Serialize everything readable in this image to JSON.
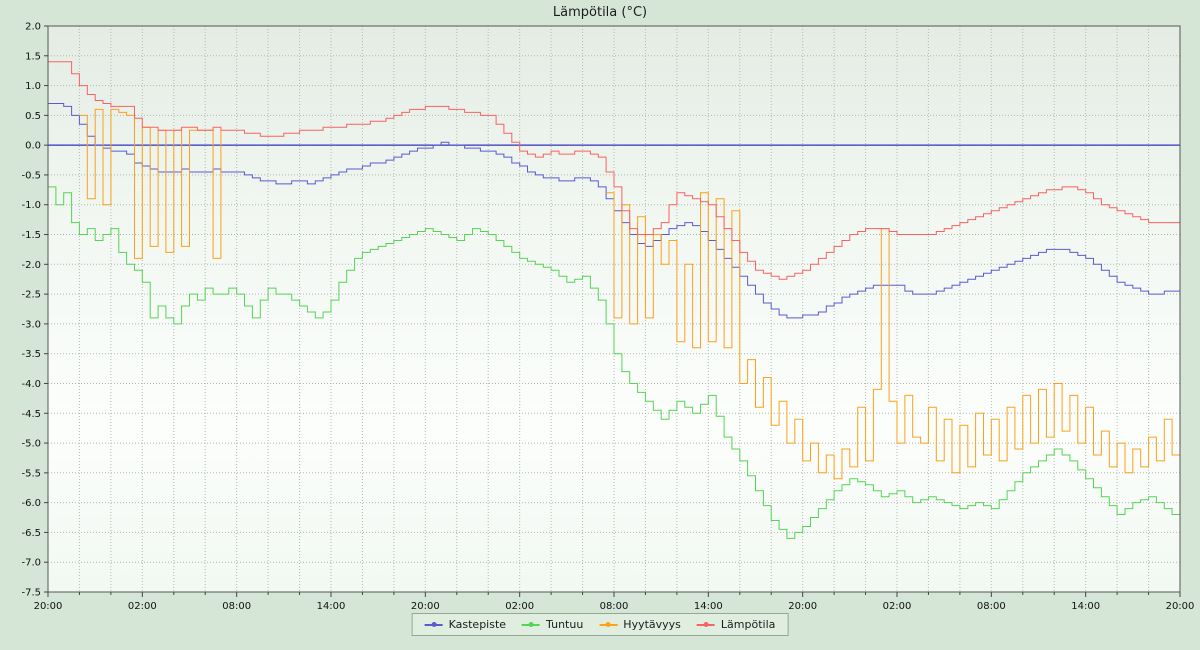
{
  "chart_data": {
    "type": "line",
    "title": "Lämpötila (°C)",
    "grid": "dotted",
    "legend_position": "bottom",
    "plot_background": {
      "top": "#e4ece4",
      "bottom": "#f2f8f2"
    },
    "zero_line": {
      "value": 0.0,
      "color": "#3434bd"
    },
    "x_axis": {
      "total_hours": 72,
      "step_hours": 0.5,
      "minor_step_hours": 2,
      "tick_hours": [
        0,
        6,
        12,
        18,
        24,
        30,
        36,
        42,
        48,
        54,
        60,
        66,
        72
      ],
      "tick_labels": [
        "20:00",
        "02:00",
        "08:00",
        "14:00",
        "20:00",
        "02:00",
        "08:00",
        "14:00",
        "20:00",
        "02:00",
        "08:00",
        "14:00",
        "20:00"
      ]
    },
    "y_axis": {
      "min": -7.5,
      "max": 2.0,
      "tick_step": 0.5,
      "tick_labels": [
        "2.0",
        "1.5",
        "1.0",
        "0.5",
        "0.0",
        "-0.5",
        "-1.0",
        "-1.5",
        "-2.0",
        "-2.5",
        "-3.0",
        "-3.5",
        "-4.0",
        "-4.5",
        "-5.0",
        "-5.5",
        "-6.0",
        "-6.5",
        "-7.0",
        "-7.5"
      ]
    },
    "series": [
      {
        "name": "Kastepiste",
        "color": "#5b5bd0",
        "values": [
          0.7,
          0.7,
          0.65,
          0.5,
          0.35,
          0.15,
          0.0,
          -0.05,
          -0.1,
          -0.1,
          -0.15,
          -0.3,
          -0.35,
          -0.4,
          -0.45,
          -0.45,
          -0.45,
          -0.4,
          -0.45,
          -0.45,
          -0.45,
          -0.4,
          -0.45,
          -0.45,
          -0.45,
          -0.5,
          -0.55,
          -0.6,
          -0.6,
          -0.65,
          -0.65,
          -0.6,
          -0.6,
          -0.65,
          -0.6,
          -0.55,
          -0.5,
          -0.45,
          -0.4,
          -0.4,
          -0.35,
          -0.3,
          -0.3,
          -0.25,
          -0.2,
          -0.15,
          -0.1,
          -0.05,
          -0.05,
          0.0,
          0.05,
          0.0,
          0.0,
          -0.05,
          -0.05,
          -0.1,
          -0.1,
          -0.15,
          -0.2,
          -0.3,
          -0.35,
          -0.45,
          -0.5,
          -0.55,
          -0.55,
          -0.6,
          -0.6,
          -0.55,
          -0.55,
          -0.6,
          -0.7,
          -0.9,
          -1.1,
          -1.3,
          -1.5,
          -1.65,
          -1.7,
          -1.6,
          -1.5,
          -1.4,
          -1.35,
          -1.3,
          -1.35,
          -1.45,
          -1.6,
          -1.75,
          -1.9,
          -2.05,
          -2.2,
          -2.35,
          -2.5,
          -2.65,
          -2.75,
          -2.85,
          -2.9,
          -2.9,
          -2.85,
          -2.85,
          -2.8,
          -2.7,
          -2.65,
          -2.55,
          -2.5,
          -2.45,
          -2.4,
          -2.35,
          -2.35,
          -2.35,
          -2.35,
          -2.45,
          -2.5,
          -2.5,
          -2.5,
          -2.45,
          -2.4,
          -2.35,
          -2.3,
          -2.25,
          -2.2,
          -2.15,
          -2.1,
          -2.05,
          -2.0,
          -1.95,
          -1.9,
          -1.85,
          -1.8,
          -1.75,
          -1.75,
          -1.75,
          -1.8,
          -1.85,
          -1.9,
          -2.0,
          -2.1,
          -2.2,
          -2.3,
          -2.35,
          -2.4,
          -2.45,
          -2.5,
          -2.5,
          -2.45,
          -2.45,
          -2.45
        ]
      },
      {
        "name": "Tuntuu",
        "color": "#55d455",
        "values": [
          -0.7,
          -1.0,
          -0.8,
          -1.3,
          -1.5,
          -1.4,
          -1.6,
          -1.5,
          -1.4,
          -1.8,
          -2.0,
          -2.1,
          -2.3,
          -2.9,
          -2.7,
          -2.9,
          -3.0,
          -2.7,
          -2.5,
          -2.6,
          -2.4,
          -2.5,
          -2.5,
          -2.4,
          -2.5,
          -2.7,
          -2.9,
          -2.6,
          -2.4,
          -2.5,
          -2.5,
          -2.6,
          -2.7,
          -2.8,
          -2.9,
          -2.8,
          -2.6,
          -2.3,
          -2.1,
          -1.9,
          -1.8,
          -1.75,
          -1.7,
          -1.65,
          -1.6,
          -1.55,
          -1.5,
          -1.45,
          -1.4,
          -1.45,
          -1.5,
          -1.55,
          -1.6,
          -1.5,
          -1.4,
          -1.45,
          -1.5,
          -1.6,
          -1.7,
          -1.8,
          -1.9,
          -1.95,
          -2.0,
          -2.05,
          -2.1,
          -2.2,
          -2.3,
          -2.25,
          -2.2,
          -2.4,
          -2.6,
          -3.0,
          -3.5,
          -3.8,
          -4.0,
          -4.15,
          -4.3,
          -4.45,
          -4.6,
          -4.45,
          -4.3,
          -4.4,
          -4.5,
          -4.35,
          -4.2,
          -4.55,
          -4.9,
          -5.1,
          -5.3,
          -5.55,
          -5.8,
          -6.05,
          -6.3,
          -6.45,
          -6.6,
          -6.5,
          -6.4,
          -6.25,
          -6.1,
          -5.95,
          -5.8,
          -5.7,
          -5.6,
          -5.65,
          -5.7,
          -5.8,
          -5.9,
          -5.85,
          -5.8,
          -5.9,
          -6.0,
          -5.95,
          -5.9,
          -5.95,
          -6.0,
          -6.05,
          -6.1,
          -6.05,
          -6.0,
          -6.05,
          -6.1,
          -5.95,
          -5.8,
          -5.65,
          -5.5,
          -5.4,
          -5.3,
          -5.2,
          -5.1,
          -5.2,
          -5.3,
          -5.45,
          -5.6,
          -5.75,
          -5.9,
          -6.05,
          -6.2,
          -6.1,
          -6.0,
          -5.95,
          -5.9,
          -6.0,
          -6.1,
          -6.2,
          -6.3
        ]
      },
      {
        "name": "Hyytävyys",
        "color": "#ffa018",
        "values": [
          null,
          null,
          null,
          null,
          0.5,
          -0.9,
          0.6,
          -1.0,
          0.6,
          0.55,
          0.5,
          -1.9,
          0.3,
          -1.7,
          0.25,
          -1.8,
          0.25,
          -1.7,
          0.25,
          0.25,
          0.25,
          -1.9,
          0.25,
          null,
          null,
          null,
          null,
          null,
          null,
          null,
          null,
          null,
          null,
          null,
          null,
          null,
          null,
          null,
          null,
          null,
          null,
          null,
          null,
          null,
          null,
          null,
          null,
          null,
          null,
          null,
          null,
          null,
          null,
          null,
          null,
          null,
          null,
          null,
          null,
          null,
          null,
          null,
          null,
          null,
          null,
          null,
          null,
          null,
          null,
          null,
          null,
          -0.8,
          -2.9,
          -1.0,
          -3.0,
          -1.2,
          -2.9,
          -1.5,
          -2.0,
          -1.6,
          -3.3,
          -2.0,
          -3.4,
          -0.8,
          -3.3,
          -0.9,
          -3.4,
          -1.1,
          -4.0,
          -3.6,
          -4.4,
          -3.9,
          -4.7,
          -4.3,
          -5.0,
          -4.6,
          -5.3,
          -5.0,
          -5.5,
          -5.2,
          -5.6,
          -5.1,
          -5.4,
          -4.4,
          -5.3,
          -4.1,
          -1.4,
          -4.3,
          -5.0,
          -4.2,
          -4.9,
          -5.0,
          -4.4,
          -5.3,
          -4.6,
          -5.5,
          -4.7,
          -5.4,
          -4.5,
          -5.2,
          -4.6,
          -5.3,
          -4.4,
          -5.1,
          -4.2,
          -5.0,
          -4.1,
          -4.9,
          -4.0,
          -4.8,
          -4.2,
          -5.0,
          -4.4,
          -5.2,
          -4.8,
          -5.4,
          -5.0,
          -5.5,
          -5.1,
          -5.4,
          -4.9,
          -5.3,
          -4.6,
          -5.2,
          -5.0
        ]
      },
      {
        "name": "Lämpötila",
        "color": "#f96262",
        "values": [
          1.4,
          1.4,
          1.4,
          1.2,
          1.0,
          0.85,
          0.75,
          0.7,
          0.65,
          0.65,
          0.65,
          0.45,
          0.3,
          0.3,
          0.25,
          0.25,
          0.25,
          0.3,
          0.3,
          0.25,
          0.25,
          0.3,
          0.25,
          0.25,
          0.25,
          0.2,
          0.2,
          0.15,
          0.15,
          0.15,
          0.2,
          0.2,
          0.25,
          0.25,
          0.25,
          0.3,
          0.3,
          0.3,
          0.35,
          0.35,
          0.35,
          0.4,
          0.4,
          0.45,
          0.5,
          0.55,
          0.6,
          0.6,
          0.65,
          0.65,
          0.65,
          0.6,
          0.6,
          0.55,
          0.55,
          0.5,
          0.5,
          0.35,
          0.2,
          0.05,
          -0.1,
          -0.15,
          -0.2,
          -0.15,
          -0.1,
          -0.15,
          -0.15,
          -0.1,
          -0.1,
          -0.15,
          -0.2,
          -0.45,
          -0.7,
          -1.1,
          -1.4,
          -1.5,
          -1.5,
          -1.4,
          -1.3,
          -1.0,
          -0.8,
          -0.85,
          -0.9,
          -0.95,
          -1.0,
          -1.2,
          -1.4,
          -1.6,
          -1.8,
          -1.95,
          -2.1,
          -2.15,
          -2.2,
          -2.25,
          -2.2,
          -2.15,
          -2.1,
          -2.0,
          -1.9,
          -1.8,
          -1.7,
          -1.6,
          -1.5,
          -1.45,
          -1.4,
          -1.4,
          -1.4,
          -1.45,
          -1.5,
          -1.5,
          -1.5,
          -1.5,
          -1.5,
          -1.45,
          -1.4,
          -1.35,
          -1.3,
          -1.25,
          -1.2,
          -1.15,
          -1.1,
          -1.05,
          -1.0,
          -0.95,
          -0.9,
          -0.85,
          -0.8,
          -0.75,
          -0.75,
          -0.7,
          -0.7,
          -0.75,
          -0.8,
          -0.9,
          -1.0,
          -1.05,
          -1.1,
          -1.15,
          -1.2,
          -1.25,
          -1.3,
          -1.3,
          -1.3,
          -1.3,
          -1.3
        ]
      }
    ]
  }
}
